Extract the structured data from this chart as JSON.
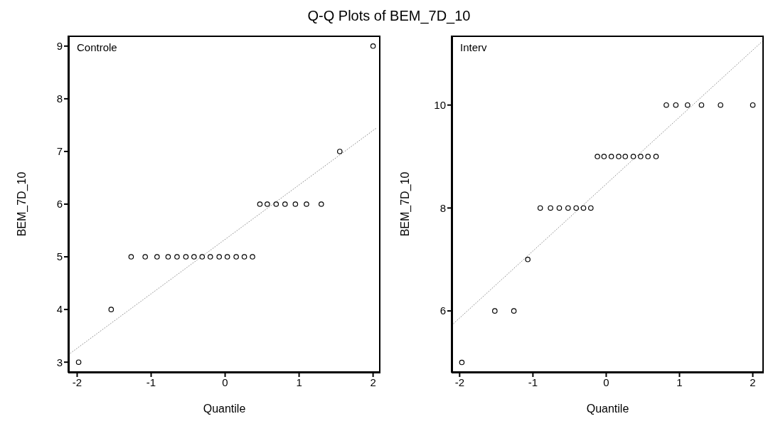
{
  "chart_data": [
    {
      "type": "scatter",
      "title": "Q-Q Plots of BEM_7D_10",
      "xlabel": "Quantile",
      "ylabel": "BEM_7D_10",
      "annotations": [
        "Controle"
      ],
      "grid": false,
      "legend": false,
      "xlim": [
        -2.12,
        2.1
      ],
      "ylim": [
        2.8,
        9.2
      ],
      "xticks": [
        -2,
        -1,
        0,
        1,
        2
      ],
      "yticks": [
        3,
        4,
        5,
        6,
        7,
        8,
        9
      ],
      "series": [
        {
          "marker": "circle",
          "color": "#000000",
          "x": [
            -1.98,
            -1.54,
            -1.27,
            -1.08,
            -0.92,
            -0.77,
            -0.65,
            -0.53,
            -0.42,
            -0.31,
            -0.2,
            -0.08,
            0.03,
            0.15,
            0.26,
            0.37,
            0.47,
            0.57,
            0.69,
            0.81,
            0.95,
            1.1,
            1.3,
            1.55,
            2.0
          ],
          "values": [
            3,
            4,
            5,
            5,
            5,
            5,
            5,
            5,
            5,
            5,
            5,
            5,
            5,
            5,
            5,
            5,
            6,
            6,
            6,
            6,
            6,
            6,
            6,
            7,
            9
          ]
        },
        {
          "type": "line",
          "color": "#808080",
          "line_style": "dotted",
          "x": [
            -2.12,
            2.04
          ],
          "values": [
            3.14,
            7.44
          ]
        }
      ]
    },
    {
      "type": "scatter",
      "xlabel": "Quantile",
      "ylabel": "BEM_7D_10",
      "annotations": [
        "Interv"
      ],
      "grid": false,
      "legend": false,
      "xlim": [
        -2.11,
        2.15
      ],
      "ylim": [
        4.8,
        11.35
      ],
      "xticks": [
        -2,
        -1,
        0,
        1,
        2
      ],
      "yticks": [
        6,
        8,
        10
      ],
      "series": [
        {
          "marker": "circle",
          "color": "#000000",
          "x": [
            -1.97,
            -1.52,
            -1.26,
            -1.07,
            -0.9,
            -0.76,
            -0.64,
            -0.52,
            -0.41,
            -0.31,
            -0.21,
            -0.12,
            -0.03,
            0.07,
            0.17,
            0.26,
            0.37,
            0.47,
            0.57,
            0.68,
            0.82,
            0.95,
            1.11,
            1.3,
            1.56,
            2.0
          ],
          "values": [
            5,
            6,
            6,
            7,
            8,
            8,
            8,
            8,
            8,
            8,
            8,
            9,
            9,
            9,
            9,
            9,
            9,
            9,
            9,
            9,
            10,
            10,
            10,
            10,
            10,
            10
          ]
        },
        {
          "type": "line",
          "color": "#808080",
          "line_style": "dotted",
          "x": [
            -2.11,
            2.14
          ],
          "values": [
            5.72,
            11.25
          ]
        }
      ]
    }
  ]
}
